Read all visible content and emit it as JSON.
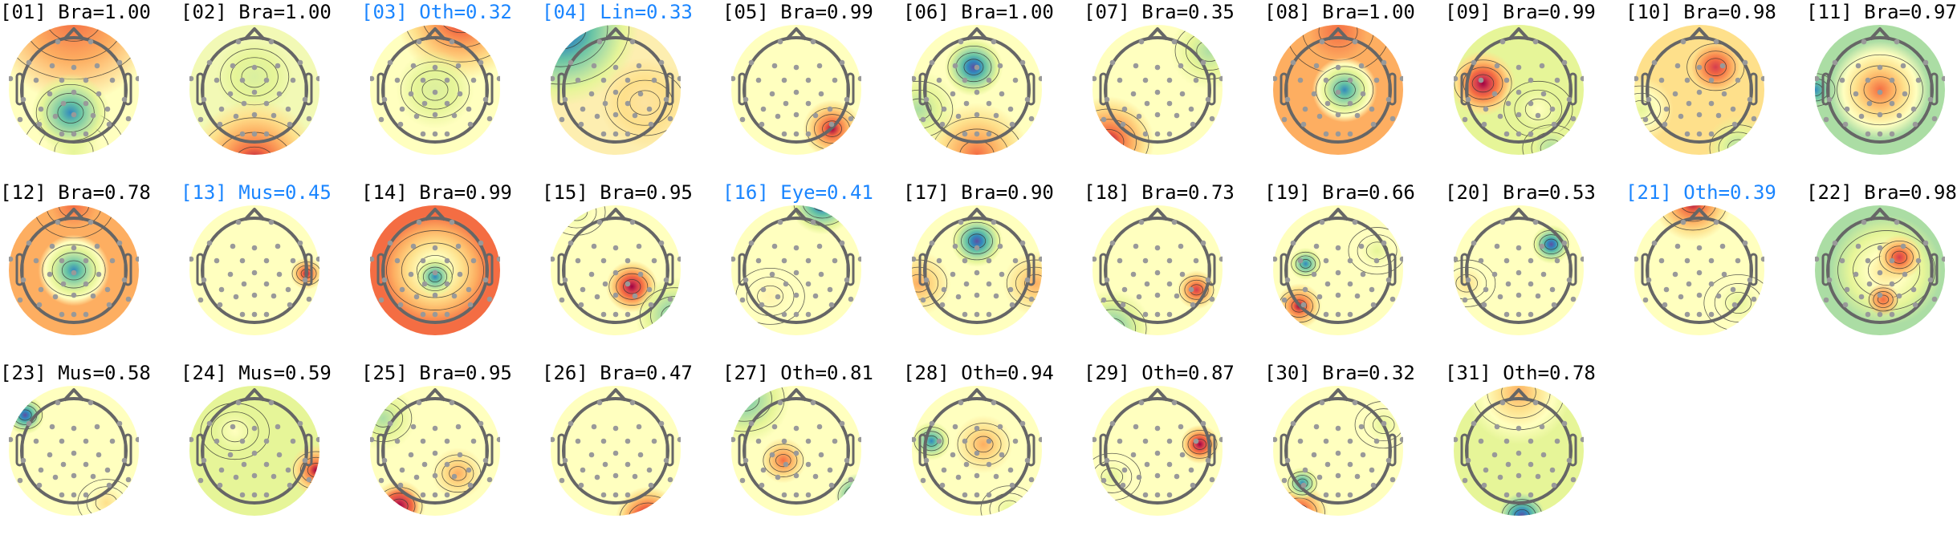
{
  "colors": {
    "normal_label": "#000000",
    "flagged_label": "#1a85ff"
  },
  "colormap": "spectral",
  "components": [
    {
      "label": "[01] Bra=1.00",
      "flagged": false
    },
    {
      "label": "[02] Bra=1.00",
      "flagged": false
    },
    {
      "label": "[03] Oth=0.32",
      "flagged": true
    },
    {
      "label": "[04] Lin=0.33",
      "flagged": true
    },
    {
      "label": "[05] Bra=0.99",
      "flagged": false
    },
    {
      "label": "[06] Bra=1.00",
      "flagged": false
    },
    {
      "label": "[07] Bra=0.35",
      "flagged": false
    },
    {
      "label": "[08] Bra=1.00",
      "flagged": false
    },
    {
      "label": "[09] Bra=0.99",
      "flagged": false
    },
    {
      "label": "[10] Bra=0.98",
      "flagged": false
    },
    {
      "label": "[11] Bra=0.97",
      "flagged": false
    },
    {
      "label": "[12] Bra=0.78",
      "flagged": false
    },
    {
      "label": "[13] Mus=0.45",
      "flagged": true
    },
    {
      "label": "[14] Bra=0.99",
      "flagged": false
    },
    {
      "label": "[15] Bra=0.95",
      "flagged": false
    },
    {
      "label": "[16] Eye=0.41",
      "flagged": true
    },
    {
      "label": "[17] Bra=0.90",
      "flagged": false
    },
    {
      "label": "[18] Bra=0.73",
      "flagged": false
    },
    {
      "label": "[19] Bra=0.66",
      "flagged": false
    },
    {
      "label": "[20] Bra=0.53",
      "flagged": false
    },
    {
      "label": "[21] Oth=0.39",
      "flagged": true
    },
    {
      "label": "[22] Bra=0.98",
      "flagged": false
    },
    {
      "label": "[23] Mus=0.58",
      "flagged": false
    },
    {
      "label": "[24] Mus=0.59",
      "flagged": false
    },
    {
      "label": "[25] Bra=0.95",
      "flagged": false
    },
    {
      "label": "[26] Bra=0.47",
      "flagged": false
    },
    {
      "label": "[27] Oth=0.81",
      "flagged": false
    },
    {
      "label": "[28] Oth=0.94",
      "flagged": false
    },
    {
      "label": "[29] Oth=0.87",
      "flagged": false
    },
    {
      "label": "[30] Bra=0.32",
      "flagged": false
    },
    {
      "label": "[31] Oth=0.78",
      "flagged": false
    }
  ]
}
